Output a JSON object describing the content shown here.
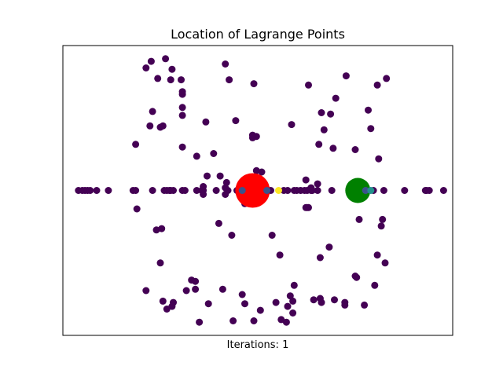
{
  "chart_data": {
    "type": "scatter",
    "title": "Location of Lagrange Points",
    "xlabel": "Iterations: 1",
    "ylabel": "",
    "xlim": [
      -1.5,
      1.5
    ],
    "ylim": [
      -1.1,
      1.1
    ],
    "grid": false,
    "ticks_visible": false,
    "colors": {
      "particles": "#440154",
      "primary_body": "#ff0000",
      "secondary_body": "#008000",
      "near_points": "#3b528b",
      "mid_points": "#21918c",
      "far_point": "#fde725"
    },
    "bodies": [
      {
        "x": -0.04,
        "y": 0.0,
        "color": "#ff0000",
        "size": "large"
      },
      {
        "x": 0.77,
        "y": 0.0,
        "color": "#008000",
        "size": "medium"
      }
    ],
    "highlighted_points": [
      {
        "x": -0.12,
        "y": 0.0,
        "color": "#3b528b"
      },
      {
        "x": 0.07,
        "y": 0.0,
        "color": "#3b528b"
      },
      {
        "x": 0.83,
        "y": 0.0,
        "color": "#3b528b"
      },
      {
        "x": 0.87,
        "y": 0.0,
        "color": "#21918c"
      },
      {
        "x": 0.16,
        "y": 0.0,
        "color": "#fde725"
      }
    ],
    "points": [
      [
        -1.38,
        0
      ],
      [
        -1.35,
        0
      ],
      [
        -1.33,
        0
      ],
      [
        -1.31,
        0
      ],
      [
        -1.29,
        0
      ],
      [
        -1.24,
        0
      ],
      [
        -1.15,
        0
      ],
      [
        -0.96,
        0
      ],
      [
        -0.94,
        0
      ],
      [
        -0.81,
        0
      ],
      [
        -0.72,
        0
      ],
      [
        -0.7,
        0
      ],
      [
        -0.68,
        0
      ],
      [
        -0.67,
        0
      ],
      [
        -0.65,
        0
      ],
      [
        -0.58,
        0
      ],
      [
        -0.56,
        0
      ],
      [
        -0.47,
        0
      ],
      [
        -0.43,
        0
      ],
      [
        -0.42,
        0
      ],
      [
        -0.32,
        0
      ],
      [
        -0.23,
        0
      ],
      [
        -0.16,
        0
      ],
      [
        -0.13,
        0
      ],
      [
        0.08,
        0
      ],
      [
        0.1,
        0
      ],
      [
        0.2,
        0
      ],
      [
        0.23,
        0
      ],
      [
        0.28,
        0
      ],
      [
        0.3,
        0
      ],
      [
        0.33,
        0
      ],
      [
        0.36,
        0
      ],
      [
        0.38,
        0
      ],
      [
        0.41,
        0
      ],
      [
        0.42,
        0
      ],
      [
        0.46,
        0
      ],
      [
        0.57,
        0
      ],
      [
        0.71,
        0
      ],
      [
        0.85,
        0
      ],
      [
        0.89,
        0
      ],
      [
        0.97,
        0
      ],
      [
        1.13,
        0
      ],
      [
        1.29,
        0
      ],
      [
        1.3,
        0
      ],
      [
        1.32,
        0
      ],
      [
        1.43,
        0
      ],
      [
        -0.42,
        -0.03
      ],
      [
        0.46,
        0.05
      ],
      [
        0.41,
        0.02
      ],
      [
        -0.42,
        0.03
      ],
      [
        -0.93,
        -0.14
      ],
      [
        0.38,
        -0.13
      ],
      [
        0.39,
        -0.13
      ],
      [
        0.78,
        -0.22
      ],
      [
        0.96,
        -0.22
      ],
      [
        0.95,
        -0.27
      ],
      [
        -0.3,
        -0.25
      ],
      [
        -0.78,
        -0.3
      ],
      [
        -0.74,
        -0.29
      ],
      [
        -0.2,
        -0.34
      ],
      [
        0.11,
        -0.34
      ],
      [
        0.55,
        -0.43
      ],
      [
        0.17,
        -0.49
      ],
      [
        -0.75,
        -0.55
      ],
      [
        0.48,
        -0.51
      ],
      [
        0.92,
        -0.49
      ],
      [
        0.98,
        -0.55
      ],
      [
        -0.51,
        -0.68
      ],
      [
        -0.48,
        -0.69
      ],
      [
        0.76,
        -0.66
      ],
      [
        0.75,
        -0.65
      ],
      [
        0.9,
        -0.72
      ],
      [
        0.28,
        -0.72
      ],
      [
        -0.86,
        -0.76
      ],
      [
        -0.48,
        -0.75
      ],
      [
        -0.27,
        -0.75
      ],
      [
        -0.55,
        -0.76
      ],
      [
        -0.12,
        -0.79
      ],
      [
        0.25,
        -0.8
      ],
      [
        0.27,
        -0.84
      ],
      [
        0.43,
        -0.83
      ],
      [
        0.48,
        -0.82
      ],
      [
        0.49,
        -0.85
      ],
      [
        -0.73,
        -0.84
      ],
      [
        -0.65,
        -0.85
      ],
      [
        -0.38,
        -0.86
      ],
      [
        -0.1,
        -0.86
      ],
      [
        0.14,
        -0.85
      ],
      [
        0.23,
        -0.88
      ],
      [
        0.59,
        -0.83
      ],
      [
        0.67,
        -0.85
      ],
      [
        0.67,
        -0.87
      ],
      [
        0.82,
        -0.87
      ],
      [
        -0.66,
        -0.88
      ],
      [
        -0.7,
        -0.9
      ],
      [
        0.02,
        -0.91
      ],
      [
        0.27,
        -0.93
      ],
      [
        -0.19,
        -0.99
      ],
      [
        -0.45,
        -1.0
      ],
      [
        -0.03,
        -0.99
      ],
      [
        0.18,
        -0.98
      ],
      [
        0.22,
        -1.0
      ],
      [
        -0.82,
        0.98
      ],
      [
        -0.71,
        1.0
      ],
      [
        -0.66,
        0.92
      ],
      [
        -0.86,
        0.93
      ],
      [
        -0.25,
        0.96
      ],
      [
        -0.67,
        0.84
      ],
      [
        -0.59,
        0.84
      ],
      [
        -0.77,
        0.85
      ],
      [
        -0.22,
        0.84
      ],
      [
        -0.03,
        0.81
      ],
      [
        0.39,
        0.8
      ],
      [
        0.68,
        0.87
      ],
      [
        0.92,
        0.8
      ],
      [
        0.99,
        0.85
      ],
      [
        -0.58,
        0.73
      ],
      [
        0.6,
        0.7
      ],
      [
        -0.58,
        0.75
      ],
      [
        -0.58,
        0.63
      ],
      [
        -0.81,
        0.6
      ],
      [
        -0.58,
        0.57
      ],
      [
        0.49,
        0.59
      ],
      [
        0.56,
        0.58
      ],
      [
        0.85,
        0.61
      ],
      [
        -0.4,
        0.52
      ],
      [
        -0.17,
        0.53
      ],
      [
        0.26,
        0.5
      ],
      [
        -0.83,
        0.49
      ],
      [
        -0.75,
        0.48
      ],
      [
        -0.73,
        0.49
      ],
      [
        0.51,
        0.46
      ],
      [
        0.87,
        0.47
      ],
      [
        -0.04,
        0.42
      ],
      [
        -0.01,
        0.41
      ],
      [
        -0.04,
        0.4
      ],
      [
        -0.94,
        0.35
      ],
      [
        0.47,
        0.35
      ],
      [
        -0.58,
        0.33
      ],
      [
        0.58,
        0.32
      ],
      [
        0.75,
        0.31
      ],
      [
        -0.34,
        0.28
      ],
      [
        -0.47,
        0.26
      ],
      [
        0.93,
        0.24
      ],
      [
        -0.39,
        0.11
      ],
      [
        -0.29,
        0.11
      ],
      [
        -0.01,
        0.15
      ],
      [
        0.03,
        0.14
      ],
      [
        0.37,
        0.08
      ],
      [
        -0.24,
        0.06
      ],
      [
        -0.25,
        0.02
      ],
      [
        -0.25,
        -0.03
      ],
      [
        -0.1,
        -0.1
      ],
      [
        0.37,
        -0.13
      ]
    ]
  }
}
